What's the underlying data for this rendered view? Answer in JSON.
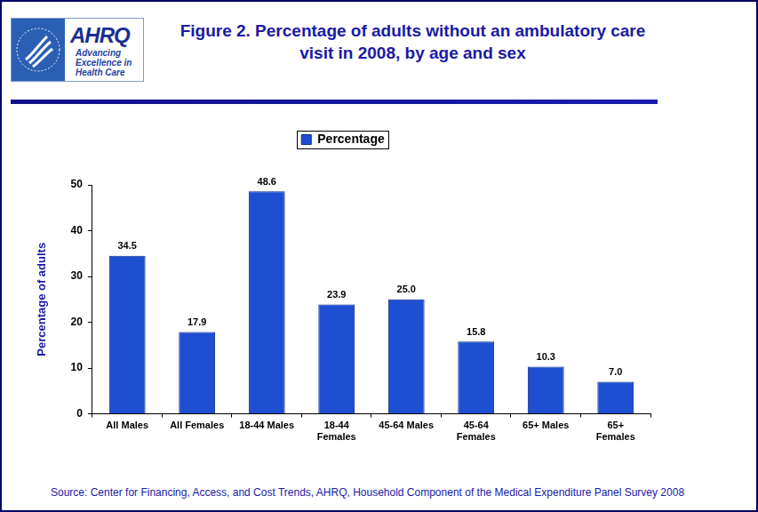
{
  "logo": {
    "name": "AHRQ",
    "tagline": [
      "Advancing",
      "Excellence in",
      "Health Care"
    ]
  },
  "chart_data": {
    "type": "bar",
    "title": "Figure 2. Percentage of adults without an ambulatory care visit in 2008, by age and sex",
    "y_label": "Percentage of adults",
    "categories": [
      "All Males",
      "All Females",
      "18-44 Males",
      "18-44 Females",
      "45-64 Males",
      "45-64 Females",
      "65+ Males",
      "65+ Females"
    ],
    "series": [
      {
        "name": "Percentage",
        "color": "#1f4fd1",
        "values": [
          34.5,
          17.9,
          48.6,
          23.9,
          25.0,
          15.8,
          10.3,
          7.0
        ],
        "value_labels": [
          "34.5",
          "17.9",
          "48.6",
          "23.9",
          "25.0",
          "15.8",
          "10.3",
          "7.0"
        ]
      }
    ],
    "ylim": [
      0,
      50
    ],
    "yticks": [
      0,
      10,
      20,
      30,
      40,
      50
    ],
    "grid": false,
    "legend": "top",
    "data_labels": true,
    "source": "Source: Center for Financing, Access, and Cost Trends, AHRQ, Household Component of the Medical Expenditure Panel Survey 2008"
  }
}
